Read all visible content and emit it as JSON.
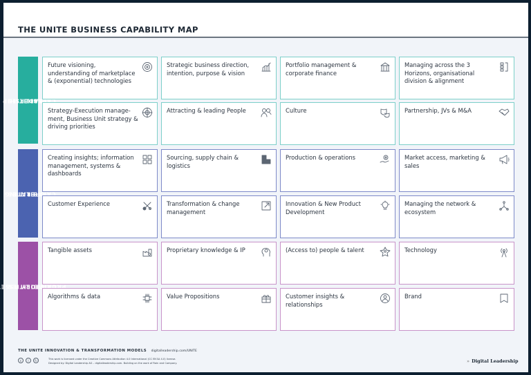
{
  "header": {
    "title": "THE UNITE BUSINESS CAPABILITY MAP"
  },
  "colors": {
    "leadership": "#27ae9e",
    "operating": "#4b63b0",
    "proprietary": "#9c51a6",
    "leadership_border": "#7ccfc9",
    "operating_border": "#7d89c8",
    "proprietary_border": "#c893c9"
  },
  "sections": [
    {
      "label_line1": "LEADERSHIP",
      "label_line2": "CAPABILITIES",
      "cards": [
        {
          "text": "Future visioning, understanding of marketplace & (exponential) technologies",
          "icon": "radar-icon"
        },
        {
          "text": "Strategic business direction, intention, purpose & vision",
          "icon": "growth-chart-icon"
        },
        {
          "text": "Portfolio management & corporate finance",
          "icon": "bank-icon"
        },
        {
          "text": "Managing across the 3 Horizons, organisational division & alignment",
          "icon": "horizons-icon"
        },
        {
          "text": "Strategy-Execution manage-ment, Business Unit strategy & driving priorities",
          "icon": "target-icon"
        },
        {
          "text": "Attracting & leading People",
          "icon": "people-search-icon"
        },
        {
          "text": "Culture",
          "icon": "theater-masks-icon"
        },
        {
          "text": "Partnership, JVs & M&A",
          "icon": "handshake-icon"
        }
      ]
    },
    {
      "label_line1": "OPERATING",
      "label_line2": "CAPABILITIES",
      "cards": [
        {
          "text": "Creating insights; information management, systems & dashboards",
          "icon": "dashboard-icon"
        },
        {
          "text": "Sourcing, supply chain & logistics",
          "icon": "boxes-icon"
        },
        {
          "text": "Production & operations",
          "icon": "gear-hand-icon"
        },
        {
          "text": "Market access, marketing & sales",
          "icon": "megaphone-icon"
        },
        {
          "text": "Customer Experience",
          "icon": "journey-icon"
        },
        {
          "text": "Transformation & change management",
          "icon": "expand-arrow-icon"
        },
        {
          "text": "Innovation & New Product Development",
          "icon": "lightbulb-icon"
        },
        {
          "text": "Managing the network & ecosystem",
          "icon": "network-icon"
        }
      ]
    },
    {
      "label_line1": "PROPIETORY ASSETS &",
      "label_line2": "CAPABILITIES",
      "cards": [
        {
          "text": "Tangible assets",
          "icon": "factory-icon"
        },
        {
          "text": "Proprietary knowledge & IP",
          "icon": "head-gear-icon"
        },
        {
          "text": "(Access to) people & talent",
          "icon": "star-person-icon"
        },
        {
          "text": "Technology",
          "icon": "antenna-icon"
        },
        {
          "text": "Algorithms & data",
          "icon": "chip-icon"
        },
        {
          "text": "Value Propositions",
          "icon": "gift-icon"
        },
        {
          "text": "Customer insights & relationships",
          "icon": "customer-circle-icon"
        },
        {
          "text": "Brand",
          "icon": "bookmark-icon"
        }
      ]
    }
  ],
  "footer": {
    "brand": "THE UNITE",
    "series": "INNOVATION & TRANSFORMATION MODELS",
    "url": "digitalleadership.com/UNITE",
    "license_line1": "This work is licensed under the Creative Commons Attribution 4.0 International (CC BY-SA 4.0) license.",
    "license_line2": "Designed by: Digital Leadership AG – digitalleadership.com. Building on the work of Rain and Company.",
    "cc_icons": [
      "cc",
      "by",
      "sa"
    ],
    "logo": "Digital Leadership",
    "logo_mark": "»"
  }
}
